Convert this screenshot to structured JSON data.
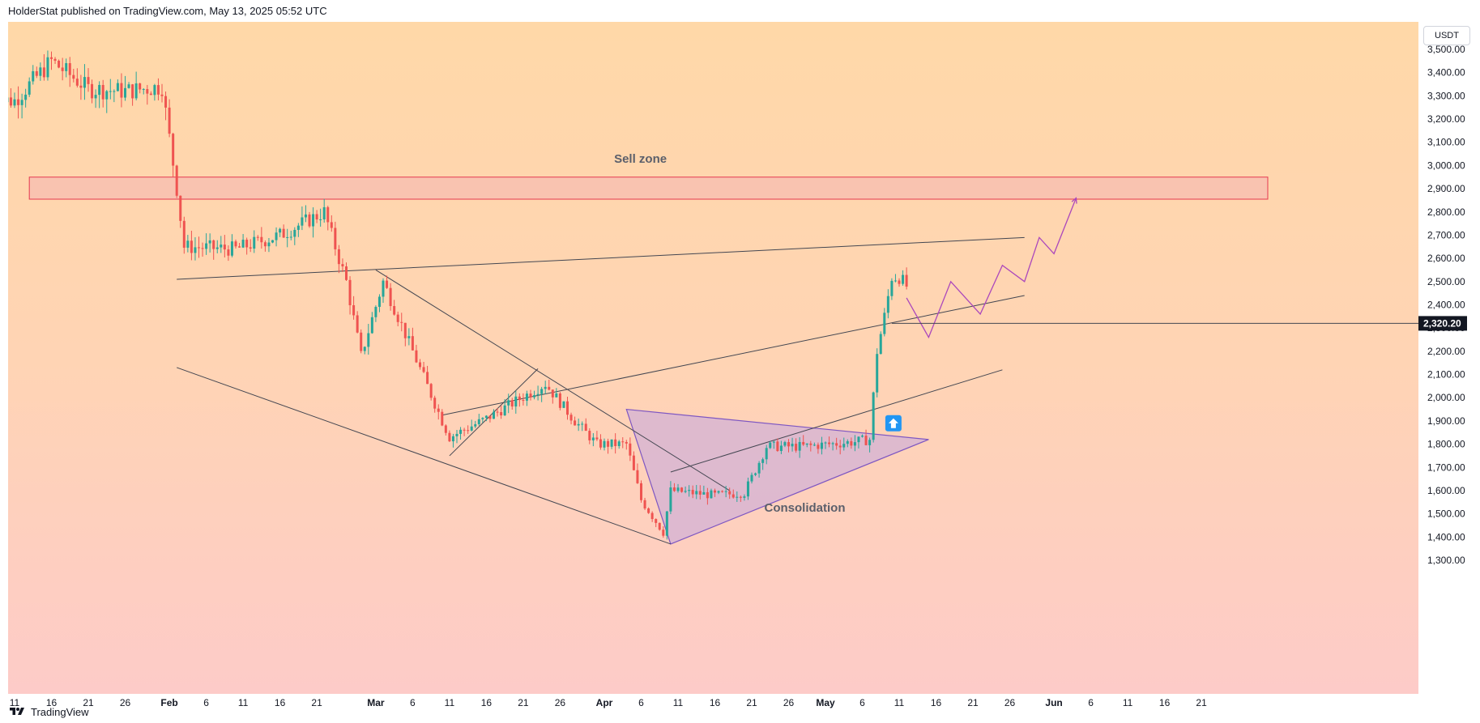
{
  "header": {
    "attribution": "HolderStat published on TradingView.com, May 13, 2025 05:52 UTC"
  },
  "footer": {
    "brand": "TradingView",
    "logo_icon": "tradingview-logo-icon"
  },
  "currency": "USDT",
  "colors": {
    "up": "#26a69a",
    "down": "#ef5350",
    "sell_zone_fill": "#f9c3b0",
    "sell_zone_border": "#e53950",
    "triangle_fill": "#d3b1d6",
    "triangle_border": "#7e57c2",
    "projection": "#ab47bc",
    "trendline": "#434651",
    "price_label_bg": "#131722"
  },
  "chart_data": {
    "type": "candlestick",
    "title": "",
    "xlabel": "",
    "ylabel": "",
    "ylim": [
      1220,
      3580
    ],
    "grid": false,
    "y_ticks": [
      "3,500.00",
      "3,400.00",
      "3,300.00",
      "3,200.00",
      "3,100.00",
      "3,000.00",
      "2,900.00",
      "2,800.00",
      "2,700.00",
      "2,600.00",
      "2,500.00",
      "2,400.00",
      "2,300.00",
      "2,200.00",
      "2,100.00",
      "2,000.00",
      "1,900.00",
      "1,800.00",
      "1,700.00",
      "1,600.00",
      "1,500.00",
      "1,400.00",
      "1,300.00"
    ],
    "x_ticks": [
      "11",
      "16",
      "21",
      "26",
      "Feb",
      "6",
      "11",
      "16",
      "21",
      "Mar",
      "6",
      "11",
      "16",
      "21",
      "26",
      "Apr",
      "6",
      "11",
      "16",
      "21",
      "26",
      "May",
      "6",
      "11",
      "16",
      "21",
      "26",
      "Jun",
      "6",
      "11",
      "16",
      "21"
    ],
    "x_ticks_bold": [
      "Feb",
      "Mar",
      "Apr",
      "May",
      "Jun"
    ],
    "current_price_label": "2,320.20",
    "current_price": 2320.2,
    "key_points": [
      {
        "date": "2025-01-11",
        "price": 3280
      },
      {
        "date": "2025-01-16",
        "price": 3450
      },
      {
        "date": "2025-01-21",
        "price": 3330
      },
      {
        "date": "2025-01-26",
        "price": 3320
      },
      {
        "date": "2025-01-31",
        "price": 3340
      },
      {
        "date": "2025-02-02",
        "price": 2900
      },
      {
        "date": "2025-02-03",
        "price": 2650
      },
      {
        "date": "2025-02-10",
        "price": 2640
      },
      {
        "date": "2025-02-16",
        "price": 2700
      },
      {
        "date": "2025-02-22",
        "price": 2800
      },
      {
        "date": "2025-02-25",
        "price": 2500
      },
      {
        "date": "2025-02-27",
        "price": 2180
      },
      {
        "date": "2025-03-02",
        "price": 2500
      },
      {
        "date": "2025-03-06",
        "price": 2200
      },
      {
        "date": "2025-03-10",
        "price": 1900
      },
      {
        "date": "2025-03-11",
        "price": 1830
      },
      {
        "date": "2025-03-16",
        "price": 1910
      },
      {
        "date": "2025-03-24",
        "price": 2060
      },
      {
        "date": "2025-03-28",
        "price": 1900
      },
      {
        "date": "2025-03-31",
        "price": 1800
      },
      {
        "date": "2025-04-04",
        "price": 1800
      },
      {
        "date": "2025-04-06",
        "price": 1560
      },
      {
        "date": "2025-04-09",
        "price": 1420
      },
      {
        "date": "2025-04-10",
        "price": 1600
      },
      {
        "date": "2025-04-16",
        "price": 1580
      },
      {
        "date": "2025-04-20",
        "price": 1590
      },
      {
        "date": "2025-04-23",
        "price": 1790
      },
      {
        "date": "2025-04-28",
        "price": 1790
      },
      {
        "date": "2025-05-05",
        "price": 1810
      },
      {
        "date": "2025-05-07",
        "price": 1820
      },
      {
        "date": "2025-05-08",
        "price": 2200
      },
      {
        "date": "2025-05-09",
        "price": 2350
      },
      {
        "date": "2025-05-10",
        "price": 2520
      },
      {
        "date": "2025-05-11",
        "price": 2520
      },
      {
        "date": "2025-05-12",
        "price": 2480
      }
    ],
    "zones": [
      {
        "label": "Sell zone",
        "from_date": "2025-01-13",
        "to_date": "2025-06-30",
        "price_low": 2855,
        "price_high": 2950
      }
    ],
    "trendlines": [
      {
        "from": {
          "date": "2025-02-02",
          "price": 2510
        },
        "to": {
          "date": "2025-05-28",
          "price": 2690
        }
      },
      {
        "from": {
          "date": "2025-02-02",
          "price": 2130
        },
        "to": {
          "date": "2025-04-10",
          "price": 1370
        }
      },
      {
        "from": {
          "date": "2025-03-01",
          "price": 2550
        },
        "to": {
          "date": "2025-04-18",
          "price": 1600
        }
      },
      {
        "from": {
          "date": "2025-03-11",
          "price": 1750
        },
        "to": {
          "date": "2025-03-23",
          "price": 2125
        }
      },
      {
        "from": {
          "date": "2025-03-10",
          "price": 1925
        },
        "to": {
          "date": "2025-05-28",
          "price": 2440
        }
      },
      {
        "from": {
          "date": "2025-04-10",
          "price": 1680
        },
        "to": {
          "date": "2025-05-25",
          "price": 2120
        }
      }
    ],
    "triangle": {
      "label": "Consolidation",
      "vertices": [
        {
          "date": "2025-04-04",
          "price": 1950
        },
        {
          "date": "2025-05-15",
          "price": 1820
        },
        {
          "date": "2025-04-10",
          "price": 1370
        }
      ]
    },
    "projection_path": [
      {
        "date": "2025-05-12",
        "price": 2430
      },
      {
        "date": "2025-05-15",
        "price": 2260
      },
      {
        "date": "2025-05-18",
        "price": 2500
      },
      {
        "date": "2025-05-22",
        "price": 2360
      },
      {
        "date": "2025-05-25",
        "price": 2570
      },
      {
        "date": "2025-05-28",
        "price": 2500
      },
      {
        "date": "2025-05-30",
        "price": 2690
      },
      {
        "date": "2025-06-01",
        "price": 2620
      },
      {
        "date": "2025-06-04",
        "price": 2860
      }
    ],
    "breakout_marker": {
      "date": "2025-05-10",
      "price": 1890,
      "icon": "arrow-up-icon"
    }
  }
}
